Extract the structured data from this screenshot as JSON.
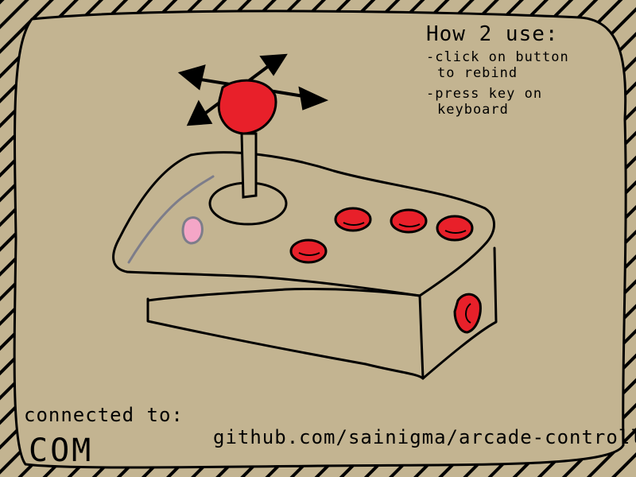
{
  "colors": {
    "background": "#c3b491",
    "border_stripe": "#c3b491",
    "outline": "#000000",
    "button_red": "#e8202a",
    "button_pink": "#f4a6c7"
  },
  "instructions": {
    "title": "How 2 use:",
    "line1": "-click on button",
    "line2": "to rebind",
    "line3": "-press key on",
    "line4": "keyboard"
  },
  "connection": {
    "label": "connected to:",
    "port": "COM"
  },
  "repo": {
    "text": "github.com/sainigma/arcade-controller"
  },
  "controller": {
    "joystick": "joystick-ball",
    "buttons": [
      "action-button-1",
      "action-button-2",
      "action-button-3",
      "action-button-4",
      "side-button"
    ],
    "special_button": "pink-button"
  }
}
